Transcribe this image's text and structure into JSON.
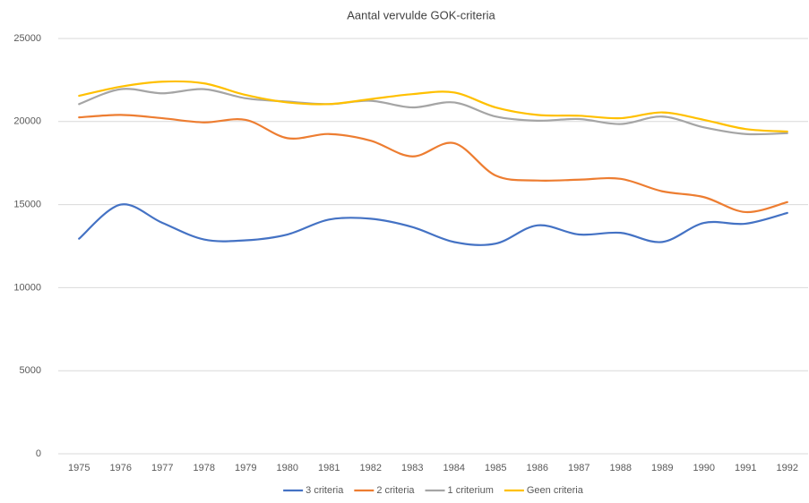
{
  "chart_data": {
    "type": "line",
    "title": "Aantal vervulde GOK-criteria",
    "categories": [
      "1975",
      "1976",
      "1977",
      "1978",
      "1979",
      "1980",
      "1981",
      "1982",
      "1983",
      "1984",
      "1985",
      "1986",
      "1987",
      "1988",
      "1989",
      "1990",
      "1991",
      "1992"
    ],
    "series": [
      {
        "name": "3 criteria",
        "color": "#4472c4",
        "values": [
          12950,
          15000,
          13900,
          12900,
          12850,
          13200,
          14100,
          14150,
          13650,
          12750,
          12650,
          13750,
          13200,
          13300,
          12750,
          13900,
          13850,
          14500
        ]
      },
      {
        "name": "2 criteria",
        "color": "#ed7d31",
        "values": [
          20250,
          20400,
          20200,
          19950,
          20100,
          19000,
          19250,
          18850,
          17900,
          18700,
          16750,
          16450,
          16500,
          16550,
          15800,
          15450,
          14550,
          15150
        ]
      },
      {
        "name": "1 criterium",
        "color": "#a5a5a5",
        "values": [
          21050,
          21950,
          21700,
          21950,
          21400,
          21200,
          21050,
          21250,
          20850,
          21150,
          20300,
          20050,
          20150,
          19850,
          20300,
          19650,
          19250,
          19300
        ]
      },
      {
        "name": "Geen criteria",
        "color": "#ffc000",
        "values": [
          21550,
          22100,
          22400,
          22300,
          21600,
          21150,
          21050,
          21350,
          21650,
          21750,
          20850,
          20400,
          20350,
          20200,
          20550,
          20100,
          19550,
          19400
        ]
      }
    ],
    "ylim": [
      0,
      25000
    ],
    "yticks": [
      0,
      5000,
      10000,
      15000,
      20000,
      25000
    ],
    "grid": true,
    "legend": "bottom"
  }
}
